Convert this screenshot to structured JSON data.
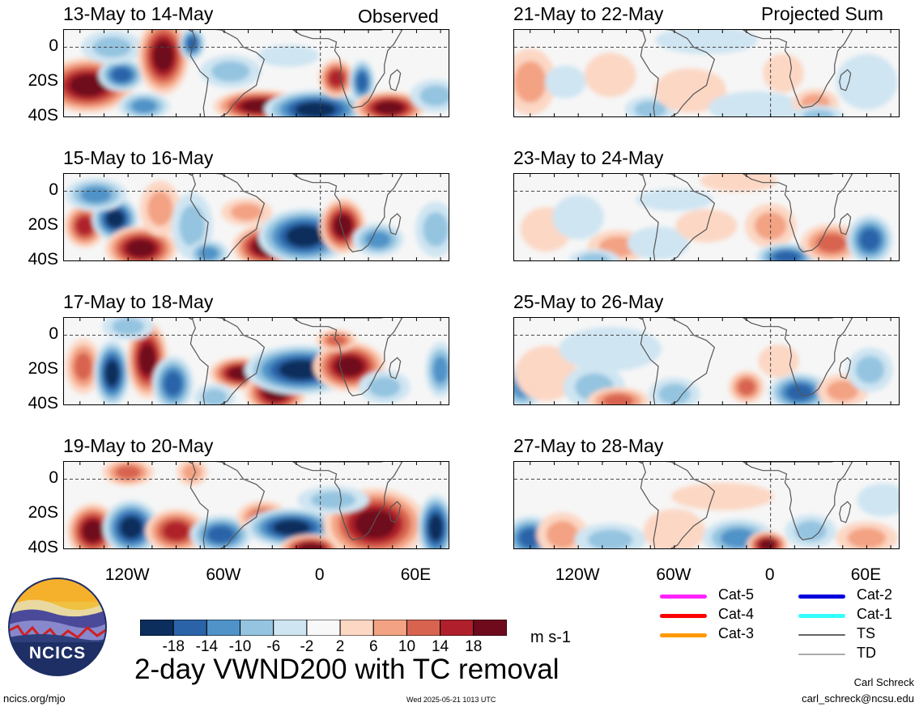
{
  "headers": {
    "left": "Observed",
    "right": "Projected Sum"
  },
  "panels": [
    {
      "id": "p1",
      "title": "13-May to 14-May",
      "col": 0,
      "row": 0,
      "blobs": [
        {
          "lon": -145,
          "lat": -22,
          "rx": 18,
          "ry": 10,
          "v": 18
        },
        {
          "lon": -124,
          "lat": -16,
          "rx": 9,
          "ry": 6,
          "v": -16
        },
        {
          "lon": -130,
          "lat": 0,
          "rx": 12,
          "ry": 6,
          "v": -8
        },
        {
          "lon": -98,
          "lat": -5,
          "rx": 10,
          "ry": 14,
          "v": 18
        },
        {
          "lon": -80,
          "lat": 2,
          "rx": 5,
          "ry": 6,
          "v": -14
        },
        {
          "lon": -110,
          "lat": -34,
          "rx": 10,
          "ry": 5,
          "v": -10
        },
        {
          "lon": -38,
          "lat": -34,
          "rx": 18,
          "ry": 6,
          "v": 18
        },
        {
          "lon": -3,
          "lat": -36,
          "rx": 20,
          "ry": 7,
          "v": -18
        },
        {
          "lon": -56,
          "lat": -14,
          "rx": 12,
          "ry": 6,
          "v": -6
        },
        {
          "lon": 10,
          "lat": -18,
          "rx": 7,
          "ry": 7,
          "v": 14
        },
        {
          "lon": 26,
          "lat": -20,
          "rx": 5,
          "ry": 8,
          "v": -14
        },
        {
          "lon": 43,
          "lat": -35,
          "rx": 14,
          "ry": 6,
          "v": 18
        },
        {
          "lon": 72,
          "lat": -28,
          "rx": 10,
          "ry": 6,
          "v": -6
        },
        {
          "lon": -20,
          "lat": -5,
          "rx": 12,
          "ry": 4,
          "v": -4
        }
      ]
    },
    {
      "id": "p2",
      "title": "15-May to 16-May",
      "col": 0,
      "row": 1,
      "blobs": [
        {
          "lon": -147,
          "lat": -20,
          "rx": 8,
          "ry": 8,
          "v": 16
        },
        {
          "lon": -128,
          "lat": -16,
          "rx": 9,
          "ry": 8,
          "v": -18
        },
        {
          "lon": -140,
          "lat": -2,
          "rx": 12,
          "ry": 6,
          "v": -10
        },
        {
          "lon": -112,
          "lat": -33,
          "rx": 14,
          "ry": 8,
          "v": 18
        },
        {
          "lon": -100,
          "lat": -10,
          "rx": 8,
          "ry": 10,
          "v": 8
        },
        {
          "lon": -80,
          "lat": -20,
          "rx": 8,
          "ry": 12,
          "v": -8
        },
        {
          "lon": -70,
          "lat": -36,
          "rx": 8,
          "ry": 5,
          "v": -12
        },
        {
          "lon": -34,
          "lat": -32,
          "rx": 13,
          "ry": 8,
          "v": 18
        },
        {
          "lon": -10,
          "lat": -26,
          "rx": 18,
          "ry": 10,
          "v": -18
        },
        {
          "lon": 14,
          "lat": -20,
          "rx": 9,
          "ry": 10,
          "v": 18
        },
        {
          "lon": 36,
          "lat": -28,
          "rx": 10,
          "ry": 6,
          "v": -10
        },
        {
          "lon": -46,
          "lat": -12,
          "rx": 10,
          "ry": 5,
          "v": 8
        },
        {
          "lon": 72,
          "lat": -22,
          "rx": 8,
          "ry": 10,
          "v": -6
        }
      ]
    },
    {
      "id": "p3",
      "title": "17-May to 18-May",
      "col": 0,
      "row": 2,
      "blobs": [
        {
          "lon": -148,
          "lat": -18,
          "rx": 7,
          "ry": 10,
          "v": 12
        },
        {
          "lon": -130,
          "lat": -22,
          "rx": 7,
          "ry": 12,
          "v": -18
        },
        {
          "lon": -108,
          "lat": -14,
          "rx": 8,
          "ry": 14,
          "v": 18
        },
        {
          "lon": -92,
          "lat": -28,
          "rx": 8,
          "ry": 10,
          "v": -14
        },
        {
          "lon": -120,
          "lat": 5,
          "rx": 10,
          "ry": 5,
          "v": -6
        },
        {
          "lon": -50,
          "lat": -22,
          "rx": 12,
          "ry": 6,
          "v": 18
        },
        {
          "lon": -28,
          "lat": -33,
          "rx": 12,
          "ry": 8,
          "v": 18
        },
        {
          "lon": -12,
          "lat": -20,
          "rx": 22,
          "ry": 9,
          "v": -18
        },
        {
          "lon": 18,
          "lat": -18,
          "rx": 14,
          "ry": 9,
          "v": 18
        },
        {
          "lon": 10,
          "lat": -3,
          "rx": 8,
          "ry": 4,
          "v": 10
        },
        {
          "lon": 40,
          "lat": -30,
          "rx": 10,
          "ry": 6,
          "v": -6
        },
        {
          "lon": 75,
          "lat": -20,
          "rx": 6,
          "ry": 10,
          "v": -12
        },
        {
          "lon": -66,
          "lat": -36,
          "rx": 8,
          "ry": 5,
          "v": -6
        }
      ]
    },
    {
      "id": "p4",
      "title": "19-May to 20-May",
      "col": 0,
      "row": 3,
      "blobs": [
        {
          "lon": -142,
          "lat": -30,
          "rx": 10,
          "ry": 10,
          "v": 18
        },
        {
          "lon": -118,
          "lat": -28,
          "rx": 11,
          "ry": 10,
          "v": -18
        },
        {
          "lon": -90,
          "lat": -30,
          "rx": 12,
          "ry": 8,
          "v": 14
        },
        {
          "lon": -62,
          "lat": -32,
          "rx": 12,
          "ry": 7,
          "v": -14
        },
        {
          "lon": -36,
          "lat": -22,
          "rx": 10,
          "ry": 6,
          "v": 12
        },
        {
          "lon": -18,
          "lat": -28,
          "rx": 18,
          "ry": 7,
          "v": -18
        },
        {
          "lon": -6,
          "lat": -40,
          "rx": 12,
          "ry": 5,
          "v": 18
        },
        {
          "lon": 34,
          "lat": -26,
          "rx": 20,
          "ry": 13,
          "v": 18
        },
        {
          "lon": 72,
          "lat": -28,
          "rx": 7,
          "ry": 12,
          "v": -18
        },
        {
          "lon": -120,
          "lat": 4,
          "rx": 10,
          "ry": 5,
          "v": 10
        },
        {
          "lon": -80,
          "lat": 4,
          "rx": 6,
          "ry": 5,
          "v": 8
        },
        {
          "lon": 8,
          "lat": -12,
          "rx": 14,
          "ry": 5,
          "v": -6
        }
      ]
    },
    {
      "id": "p5",
      "title": "21-May to 22-May",
      "col": 1,
      "row": 0,
      "blobs": [
        {
          "lon": -150,
          "lat": -20,
          "rx": 10,
          "ry": 12,
          "v": 6
        },
        {
          "lon": -128,
          "lat": -20,
          "rx": 8,
          "ry": 6,
          "v": -4
        },
        {
          "lon": -100,
          "lat": -16,
          "rx": 10,
          "ry": 8,
          "v": 4
        },
        {
          "lon": -75,
          "lat": -36,
          "rx": 10,
          "ry": 5,
          "v": -6
        },
        {
          "lon": -50,
          "lat": -25,
          "rx": 14,
          "ry": 8,
          "v": 4
        },
        {
          "lon": -10,
          "lat": -35,
          "rx": 18,
          "ry": 6,
          "v": -4
        },
        {
          "lon": 8,
          "lat": -15,
          "rx": 8,
          "ry": 7,
          "v": 4
        },
        {
          "lon": 28,
          "lat": -32,
          "rx": 9,
          "ry": 5,
          "v": 6
        },
        {
          "lon": 30,
          "lat": -40,
          "rx": 10,
          "ry": 4,
          "v": -6
        },
        {
          "lon": 60,
          "lat": -20,
          "rx": 12,
          "ry": 10,
          "v": -3
        },
        {
          "lon": -40,
          "lat": 4,
          "rx": 20,
          "ry": 5,
          "v": -3
        }
      ]
    },
    {
      "id": "p6",
      "title": "23-May to 24-May",
      "col": 1,
      "row": 1,
      "blobs": [
        {
          "lon": -140,
          "lat": -22,
          "rx": 10,
          "ry": 8,
          "v": 4
        },
        {
          "lon": -120,
          "lat": -15,
          "rx": 10,
          "ry": 8,
          "v": -3
        },
        {
          "lon": -95,
          "lat": -32,
          "rx": 12,
          "ry": 6,
          "v": 8
        },
        {
          "lon": -110,
          "lat": -40,
          "rx": 10,
          "ry": 4,
          "v": -6
        },
        {
          "lon": -70,
          "lat": -30,
          "rx": 12,
          "ry": 6,
          "v": -4
        },
        {
          "lon": -40,
          "lat": -20,
          "rx": 12,
          "ry": 6,
          "v": 4
        },
        {
          "lon": 0,
          "lat": -20,
          "rx": 10,
          "ry": 8,
          "v": 6
        },
        {
          "lon": 10,
          "lat": -38,
          "rx": 12,
          "ry": 5,
          "v": -14
        },
        {
          "lon": 38,
          "lat": -30,
          "rx": 12,
          "ry": 7,
          "v": 10
        },
        {
          "lon": 62,
          "lat": -28,
          "rx": 9,
          "ry": 9,
          "v": -14
        },
        {
          "lon": -20,
          "lat": 6,
          "rx": 15,
          "ry": 4,
          "v": 4
        },
        {
          "lon": -60,
          "lat": -5,
          "rx": 15,
          "ry": 4,
          "v": -3
        }
      ]
    },
    {
      "id": "p7",
      "title": "25-May to 26-May",
      "col": 1,
      "row": 2,
      "blobs": [
        {
          "lon": -155,
          "lat": -30,
          "rx": 8,
          "ry": 8,
          "v": -10
        },
        {
          "lon": -140,
          "lat": -22,
          "rx": 12,
          "ry": 10,
          "v": 4
        },
        {
          "lon": -110,
          "lat": -30,
          "rx": 12,
          "ry": 8,
          "v": -6
        },
        {
          "lon": -95,
          "lat": -38,
          "rx": 12,
          "ry": 5,
          "v": 10
        },
        {
          "lon": -60,
          "lat": -34,
          "rx": 10,
          "ry": 6,
          "v": -6
        },
        {
          "lon": -15,
          "lat": -30,
          "rx": 7,
          "ry": 6,
          "v": 12
        },
        {
          "lon": 18,
          "lat": -33,
          "rx": 12,
          "ry": 7,
          "v": -16
        },
        {
          "lon": 45,
          "lat": -32,
          "rx": 10,
          "ry": 6,
          "v": 8
        },
        {
          "lon": 62,
          "lat": -20,
          "rx": 9,
          "ry": 8,
          "v": -8
        },
        {
          "lon": 5,
          "lat": -15,
          "rx": 8,
          "ry": 6,
          "v": 4
        },
        {
          "lon": -100,
          "lat": -8,
          "rx": 20,
          "ry": 8,
          "v": -3
        }
      ]
    },
    {
      "id": "p8",
      "title": "27-May to 28-May",
      "col": 1,
      "row": 3,
      "blobs": [
        {
          "lon": -150,
          "lat": -34,
          "rx": 10,
          "ry": 8,
          "v": -14
        },
        {
          "lon": -130,
          "lat": -32,
          "rx": 10,
          "ry": 8,
          "v": 6
        },
        {
          "lon": -100,
          "lat": -35,
          "rx": 14,
          "ry": 6,
          "v": -8
        },
        {
          "lon": -60,
          "lat": -30,
          "rx": 12,
          "ry": 8,
          "v": 4
        },
        {
          "lon": -20,
          "lat": -34,
          "rx": 14,
          "ry": 7,
          "v": -10
        },
        {
          "lon": -2,
          "lat": -38,
          "rx": 8,
          "ry": 5,
          "v": 18
        },
        {
          "lon": 25,
          "lat": -30,
          "rx": 10,
          "ry": 6,
          "v": -8
        },
        {
          "lon": 60,
          "lat": -34,
          "rx": 12,
          "ry": 6,
          "v": 6
        },
        {
          "lon": -30,
          "lat": -10,
          "rx": 20,
          "ry": 5,
          "v": 4
        },
        {
          "lon": 70,
          "lat": -12,
          "rx": 10,
          "ry": 6,
          "v": -4
        }
      ]
    }
  ],
  "y_ticks": [
    "0",
    "20S",
    "40S"
  ],
  "x_ticks": [
    "120W",
    "60W",
    "0",
    "60E"
  ],
  "colorbar": {
    "ticks": [
      "-18",
      "-14",
      "-10",
      "-6",
      "-2",
      "2",
      "6",
      "10",
      "14",
      "18"
    ],
    "colors": [
      "#0b2e5c",
      "#2a63a8",
      "#4f93c8",
      "#94c4e0",
      "#cfe5f2",
      "#f8f8f8",
      "#fcd7c4",
      "#f3a383",
      "#d86450",
      "#b0202c",
      "#6f0a1c"
    ],
    "units": "m s-1"
  },
  "legend": [
    {
      "label": "Cat-5",
      "color": "#ff22ff"
    },
    {
      "label": "Cat-4",
      "color": "#ff0000"
    },
    {
      "label": "Cat-3",
      "color": "#ff9a00"
    },
    {
      "label": "Cat-2",
      "color": "#0000dd"
    },
    {
      "label": "Cat-1",
      "color": "#33ffff"
    },
    {
      "label": "TS",
      "color": "#666666"
    },
    {
      "label": "TD",
      "color": "#aaaaaa"
    }
  ],
  "logo_text": "NCICS",
  "main_title": "2-day VWND200 with TC removal",
  "footer": {
    "left": "ncics.org/mjo",
    "center": "Wed 2025-05-21 1013 UTC",
    "author": "Carl Schreck",
    "email": "carl_schreck@ncsu.edu"
  }
}
